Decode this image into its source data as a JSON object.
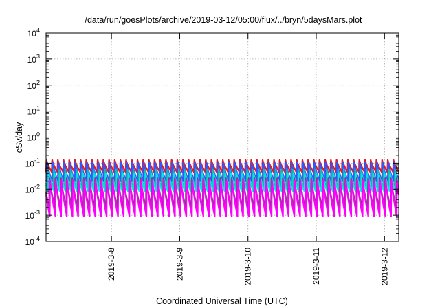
{
  "chart_data": {
    "type": "line",
    "title": "/data/run/goesPlots/archive/2019-03-12/05:00/flux/../bryn/5daysMars.plot",
    "xlabel": "Coordinated Universal Time (UTC)",
    "ylabel": "cSv/day",
    "yscale": "log",
    "ylim": [
      0.0001,
      10000
    ],
    "xlim": [
      "2019-03-07T01:00",
      "2019-03-12T05:00"
    ],
    "grid": true,
    "legend": "none",
    "y_ticks": [
      {
        "base": "10",
        "exp": "-4"
      },
      {
        "base": "10",
        "exp": "-3"
      },
      {
        "base": "10",
        "exp": "-2"
      },
      {
        "base": "10",
        "exp": "-1"
      },
      {
        "base": "10",
        "exp": "0"
      },
      {
        "base": "10",
        "exp": "1"
      },
      {
        "base": "10",
        "exp": "2"
      },
      {
        "base": "10",
        "exp": "3"
      },
      {
        "base": "10",
        "exp": "4"
      }
    ],
    "x_ticks": [
      "2019-3-8",
      "2019-3-9",
      "2019-3-10",
      "2019-3-11",
      "2019-3-12"
    ],
    "x_tick_dates": [
      "2019-03-08T00:00",
      "2019-03-09T00:00",
      "2019-03-10T00:00",
      "2019-03-11T00:00",
      "2019-03-12T00:00"
    ],
    "orbit_period_hours": 2,
    "series": [
      {
        "color": "#e41a1c",
        "peak": 0.14,
        "trough": 0.045,
        "phase_hours": 0.0
      },
      {
        "color": "#3355ff",
        "peak": 0.12,
        "trough": 0.02,
        "phase_hours": 0.15
      },
      {
        "color": "#20b2aa",
        "peak": 0.06,
        "trough": 0.012,
        "phase_hours": 0.55
      },
      {
        "color": "#00e5e5",
        "peak": 0.045,
        "trough": 0.008,
        "phase_hours": 0.85
      },
      {
        "color": "#8b3a8b",
        "peak": 0.03,
        "trough": 0.002,
        "phase_hours": 1.1
      },
      {
        "color": "#ff00ff",
        "peak": 0.025,
        "trough": 0.0009,
        "phase_hours": 1.3
      }
    ]
  }
}
